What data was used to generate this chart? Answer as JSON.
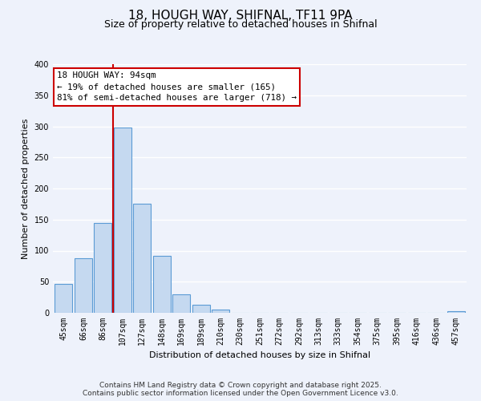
{
  "title_line1": "18, HOUGH WAY, SHIFNAL, TF11 9PA",
  "title_line2": "Size of property relative to detached houses in Shifnal",
  "xlabel": "Distribution of detached houses by size in Shifnal",
  "ylabel": "Number of detached properties",
  "bar_labels": [
    "45sqm",
    "66sqm",
    "86sqm",
    "107sqm",
    "127sqm",
    "148sqm",
    "169sqm",
    "189sqm",
    "210sqm",
    "230sqm",
    "251sqm",
    "272sqm",
    "292sqm",
    "313sqm",
    "333sqm",
    "354sqm",
    "375sqm",
    "395sqm",
    "416sqm",
    "436sqm",
    "457sqm"
  ],
  "bar_values": [
    47,
    88,
    145,
    298,
    175,
    92,
    30,
    13,
    5,
    0,
    0,
    0,
    0,
    0,
    0,
    0,
    0,
    0,
    0,
    0,
    2
  ],
  "bar_color": "#c5d9f0",
  "bar_edge_color": "#5b9bd5",
  "vline_color": "#cc0000",
  "vline_x_index": 2,
  "ylim": [
    0,
    400
  ],
  "yticks": [
    0,
    50,
    100,
    150,
    200,
    250,
    300,
    350,
    400
  ],
  "annotation_title": "18 HOUGH WAY: 94sqm",
  "annotation_line1": "← 19% of detached houses are smaller (165)",
  "annotation_line2": "81% of semi-detached houses are larger (718) →",
  "annotation_box_facecolor": "#ffffff",
  "annotation_box_edgecolor": "#cc0000",
  "footer_line1": "Contains HM Land Registry data © Crown copyright and database right 2025.",
  "footer_line2": "Contains public sector information licensed under the Open Government Licence v3.0.",
  "bg_color": "#eef2fb",
  "plot_bg_color": "#eef2fb",
  "title_fontsize": 11,
  "subtitle_fontsize": 9,
  "xlabel_fontsize": 8,
  "ylabel_fontsize": 8,
  "tick_fontsize": 7,
  "footer_fontsize": 6.5
}
